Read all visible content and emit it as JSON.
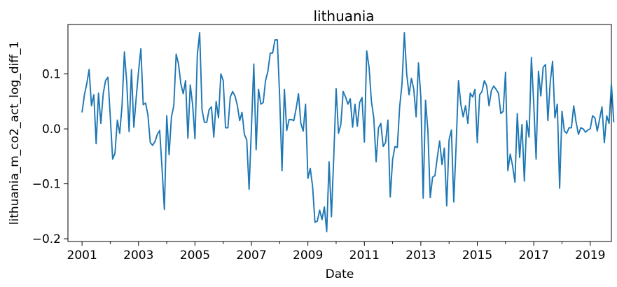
{
  "chart_data": {
    "type": "line",
    "title": "lithuania",
    "xlabel": "Date",
    "ylabel": "lithuania_m_co2_act_log_diff_1",
    "x_start": "2001-01",
    "x_end": "2019-10",
    "xlim": [
      "2000-07",
      "2019-10"
    ],
    "ylim": [
      -0.205,
      0.19
    ],
    "x_tick_labels": [
      "2001",
      "2003",
      "2005",
      "2007",
      "2009",
      "2011",
      "2013",
      "2015",
      "2017",
      "2019"
    ],
    "y_ticks": [
      -0.2,
      -0.1,
      0.0,
      0.1
    ],
    "y_tick_labels": [
      "−0.2",
      "−0.1",
      "0.0",
      "0.1"
    ],
    "grid": false,
    "series": [
      {
        "color": "#1f77b4",
        "values": [
          0.03,
          0.062,
          0.082,
          0.108,
          0.042,
          0.062,
          -0.027,
          0.065,
          0.01,
          0.064,
          0.088,
          0.094,
          0.022,
          -0.055,
          -0.044,
          0.016,
          -0.008,
          0.042,
          0.14,
          0.085,
          -0.005,
          0.108,
          0.003,
          0.056,
          0.104,
          0.146,
          0.044,
          0.047,
          0.025,
          -0.025,
          -0.03,
          -0.023,
          -0.01,
          -0.003,
          -0.072,
          -0.147,
          0.024,
          -0.047,
          0.022,
          0.042,
          0.136,
          0.118,
          0.082,
          0.064,
          0.088,
          -0.017,
          0.08,
          0.044,
          -0.018,
          0.135,
          0.175,
          0.035,
          0.012,
          0.012,
          0.035,
          0.04,
          -0.015,
          0.05,
          0.02,
          0.1,
          0.088,
          0.002,
          0.002,
          0.058,
          0.068,
          0.06,
          0.043,
          0.015,
          0.03,
          -0.01,
          -0.02,
          -0.11,
          0.002,
          0.118,
          -0.038,
          0.072,
          0.045,
          0.048,
          0.088,
          0.105,
          0.138,
          0.138,
          0.162,
          0.162,
          0.058,
          -0.076,
          0.072,
          -0.003,
          0.017,
          0.017,
          0.015,
          0.037,
          0.064,
          0.01,
          -0.004,
          0.045,
          -0.09,
          -0.072,
          -0.105,
          -0.17,
          -0.168,
          -0.148,
          -0.165,
          -0.142,
          -0.187,
          -0.06,
          -0.16,
          -0.05,
          0.073,
          -0.008,
          0.008,
          0.068,
          0.058,
          0.045,
          0.055,
          0.003,
          0.045,
          0.005,
          0.048,
          0.057,
          -0.024,
          0.142,
          0.112,
          0.05,
          0.02,
          -0.06,
          0.002,
          0.01,
          -0.032,
          -0.025,
          0.016,
          -0.124,
          -0.056,
          -0.032,
          -0.034,
          0.04,
          0.082,
          0.175,
          0.1,
          0.062,
          0.092,
          0.072,
          0.022,
          0.12,
          0.058,
          -0.126,
          0.052,
          -0.003,
          -0.125,
          -0.088,
          -0.085,
          -0.052,
          -0.022,
          -0.065,
          -0.035,
          -0.14,
          -0.02,
          -0.002,
          -0.133,
          -0.03,
          0.088,
          0.045,
          0.022,
          0.042,
          0.01,
          0.065,
          0.058,
          0.072,
          -0.025,
          0.062,
          0.068,
          0.088,
          0.078,
          0.042,
          0.07,
          0.078,
          0.072,
          0.065,
          0.028,
          0.032,
          0.103,
          -0.076,
          -0.046,
          -0.067,
          -0.097,
          0.028,
          -0.052,
          0.008,
          -0.095,
          0.015,
          -0.015,
          0.13,
          0.045,
          -0.055,
          0.105,
          0.06,
          0.112,
          0.117,
          0.015,
          0.085,
          0.123,
          0.02,
          0.045,
          -0.108,
          0.032,
          -0.004,
          -0.008,
          0.002,
          0.002,
          0.042,
          0.012,
          -0.01,
          0.002,
          0.0,
          -0.006,
          -0.002,
          0.0,
          0.024,
          0.02,
          -0.004,
          0.018,
          0.04,
          -0.025,
          0.024,
          0.01,
          0.082,
          0.012
        ]
      }
    ]
  }
}
